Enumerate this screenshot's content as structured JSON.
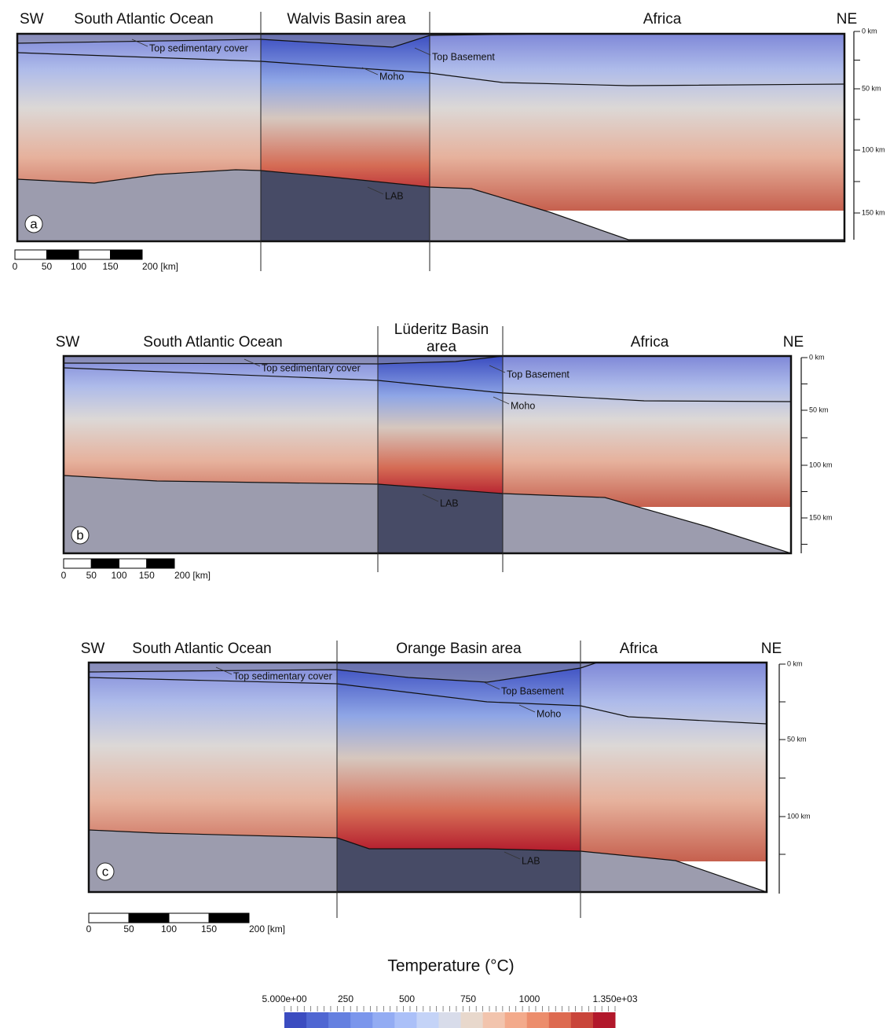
{
  "panels": [
    {
      "letter": "a",
      "sw": "SW",
      "ne": "NE",
      "ocean": "South Atlantic Ocean",
      "basin": [
        "Walvis Basin area"
      ],
      "continent": "Africa",
      "horizons": [
        "Top sedimentary cover",
        "Top Basement",
        "Moho",
        "LAB"
      ],
      "depth_labels": [
        "0 km",
        "50 km",
        "100 km",
        "150 km"
      ],
      "scale_labels": [
        "0",
        "50",
        "100",
        "150",
        "200 [km]"
      ]
    },
    {
      "letter": "b",
      "sw": "SW",
      "ne": "NE",
      "ocean": "South Atlantic Ocean",
      "basin": [
        "Lüderitz Basin",
        "area"
      ],
      "continent": "Africa",
      "horizons": [
        "Top sedimentary cover",
        "Top Basement",
        "Moho",
        "LAB"
      ],
      "depth_labels": [
        "0 km",
        "50 km",
        "100 km",
        "150 km"
      ],
      "scale_labels": [
        "0",
        "50",
        "100",
        "150",
        "200 [km]"
      ]
    },
    {
      "letter": "c",
      "sw": "SW",
      "ne": "NE",
      "ocean": "South Atlantic Ocean",
      "basin": [
        "Orange Basin area"
      ],
      "continent": "Africa",
      "horizons": [
        "Top sedimentary cover",
        "Top Basement",
        "Moho",
        "LAB"
      ],
      "depth_labels": [
        "0 km",
        "50 km",
        "100 km"
      ],
      "scale_labels": [
        "0",
        "50",
        "100",
        "150",
        "200 [km]"
      ]
    }
  ],
  "colorbar": {
    "title": "Temperature (°C)",
    "labels": [
      "5.000e+00",
      "250",
      "500",
      "750",
      "1000",
      "1.350e+03"
    ]
  }
}
